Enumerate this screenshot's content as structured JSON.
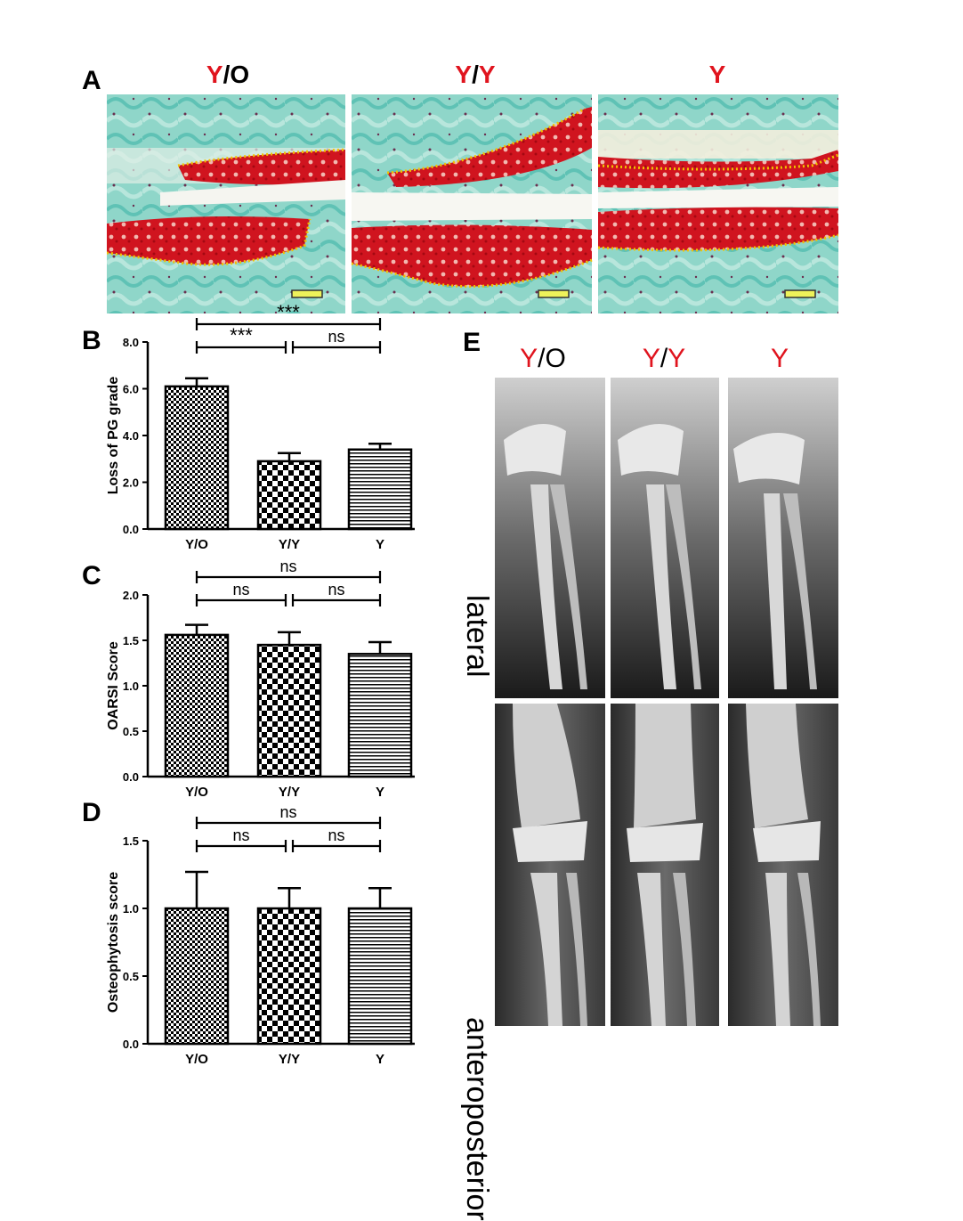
{
  "panels": {
    "A": "A",
    "B": "B",
    "C": "C",
    "D": "D",
    "E": "E"
  },
  "group_labels": [
    {
      "prefix": "Y",
      "sep": "/",
      "suffix": "O"
    },
    {
      "prefix": "Y",
      "sep": "/",
      "suffix": "Y"
    },
    {
      "prefix": "Y",
      "sep": "",
      "suffix": ""
    }
  ],
  "xray_view_labels": {
    "top": "lateral",
    "bottom": "anteroposterior"
  },
  "colors": {
    "accent_red": "#e0141e",
    "cartilage_red": "#c8102e",
    "stain_cyan": "#7ecfc4",
    "dotted_line": "#f2c200"
  },
  "chart_data": [
    {
      "panel": "B",
      "type": "bar",
      "categories": [
        "Y/O",
        "Y/Y",
        "Y"
      ],
      "values": [
        6.1,
        2.9,
        3.4
      ],
      "errors": [
        0.35,
        0.35,
        0.25
      ],
      "patterns": [
        "checker-fine",
        "checker-coarse",
        "horizontal-lines"
      ],
      "ylabel": "Loss of PG grade",
      "ylim": [
        0,
        8
      ],
      "yticks": [
        "0.0",
        "2.0",
        "4.0",
        "6.0",
        "8.0"
      ],
      "yticks_values": [
        0,
        2,
        4,
        6,
        8
      ],
      "significance": [
        {
          "from": 0,
          "to": 2,
          "label": "***",
          "level": 2
        },
        {
          "from": 0,
          "to": 1,
          "label": "***",
          "level": 1
        },
        {
          "from": 1,
          "to": 2,
          "label": "ns",
          "level": 1
        }
      ]
    },
    {
      "panel": "C",
      "type": "bar",
      "categories": [
        "Y/O",
        "Y/Y",
        "Y"
      ],
      "values": [
        1.56,
        1.45,
        1.35
      ],
      "errors": [
        0.11,
        0.14,
        0.13
      ],
      "patterns": [
        "checker-fine",
        "checker-coarse",
        "horizontal-lines"
      ],
      "ylabel": "OARSI Score",
      "ylim": [
        0,
        2
      ],
      "yticks": [
        "0.0",
        "0.5",
        "1.0",
        "1.5",
        "2.0"
      ],
      "yticks_values": [
        0,
        0.5,
        1,
        1.5,
        2
      ],
      "significance": [
        {
          "from": 0,
          "to": 2,
          "label": "ns",
          "level": 2
        },
        {
          "from": 0,
          "to": 1,
          "label": "ns",
          "level": 1
        },
        {
          "from": 1,
          "to": 2,
          "label": "ns",
          "level": 1
        }
      ]
    },
    {
      "panel": "D",
      "type": "bar",
      "categories": [
        "Y/O",
        "Y/Y",
        "Y"
      ],
      "values": [
        1.0,
        1.0,
        1.0
      ],
      "errors": [
        0.27,
        0.15,
        0.15
      ],
      "patterns": [
        "checker-fine",
        "checker-coarse",
        "horizontal-lines"
      ],
      "ylabel": "Osteophytosis score",
      "ylim": [
        0,
        1.5
      ],
      "yticks": [
        "0.0",
        "0.5",
        "1.0",
        "1.5"
      ],
      "yticks_values": [
        0,
        0.5,
        1,
        1.5
      ],
      "significance": [
        {
          "from": 0,
          "to": 2,
          "label": "ns",
          "level": 2
        },
        {
          "from": 0,
          "to": 1,
          "label": "ns",
          "level": 1
        },
        {
          "from": 1,
          "to": 2,
          "label": "ns",
          "level": 1
        }
      ]
    }
  ]
}
